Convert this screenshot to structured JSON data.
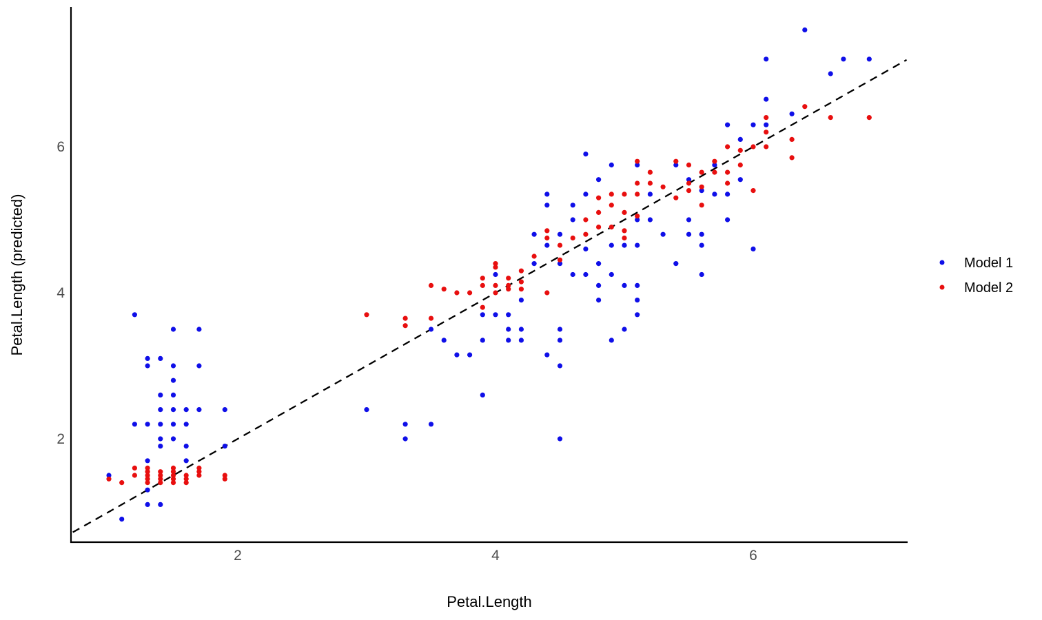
{
  "chart_data": {
    "type": "scatter",
    "title": "",
    "xlabel": "Petal.Length",
    "ylabel": "Petal.Length (predicted)",
    "xlim": [
      0.7,
      7.2
    ],
    "ylim": [
      0.55,
      7.95
    ],
    "xticks": [
      "2",
      "4",
      "6"
    ],
    "yticks": [
      "2",
      "4",
      "6"
    ],
    "grid": false,
    "legend_position": "right",
    "background": "#ffffff",
    "axis_color": "#000000",
    "tick_label_color": "#4d4d4d",
    "identity_line": {
      "equation": "y = x",
      "style": "dashed",
      "color": "#000000",
      "from": 0.72,
      "to": 7.19
    },
    "series": [
      {
        "name": "Model 1",
        "color": "#0f0fe8",
        "points": [
          [
            1.2,
            3.7
          ],
          [
            1.5,
            3.5
          ],
          [
            1.7,
            3.5
          ],
          [
            1.3,
            3.1
          ],
          [
            1.4,
            3.1
          ],
          [
            1.3,
            3.0
          ],
          [
            1.5,
            3.0
          ],
          [
            1.7,
            3.0
          ],
          [
            1.5,
            2.8
          ],
          [
            1.4,
            2.6
          ],
          [
            1.5,
            2.6
          ],
          [
            1.4,
            2.4
          ],
          [
            1.5,
            2.4
          ],
          [
            1.6,
            2.4
          ],
          [
            1.7,
            2.4
          ],
          [
            1.9,
            2.4
          ],
          [
            1.2,
            2.2
          ],
          [
            1.3,
            2.2
          ],
          [
            1.4,
            2.2
          ],
          [
            1.5,
            2.2
          ],
          [
            1.6,
            2.2
          ],
          [
            1.4,
            2.0
          ],
          [
            1.5,
            2.0
          ],
          [
            1.4,
            1.9
          ],
          [
            1.6,
            1.9
          ],
          [
            1.9,
            1.9
          ],
          [
            1.3,
            1.7
          ],
          [
            1.6,
            1.7
          ],
          [
            1.0,
            1.5
          ],
          [
            1.3,
            1.3
          ],
          [
            1.3,
            1.1
          ],
          [
            1.4,
            1.1
          ],
          [
            1.1,
            0.9
          ],
          [
            3.0,
            2.4
          ],
          [
            3.3,
            2.2
          ],
          [
            3.5,
            2.2
          ],
          [
            3.3,
            2.0
          ],
          [
            3.5,
            3.5
          ],
          [
            3.6,
            3.35
          ],
          [
            3.7,
            3.15
          ],
          [
            3.8,
            3.15
          ],
          [
            3.9,
            3.7
          ],
          [
            3.9,
            3.35
          ],
          [
            3.9,
            2.6
          ],
          [
            4.0,
            4.25
          ],
          [
            4.0,
            3.7
          ],
          [
            4.1,
            3.7
          ],
          [
            4.1,
            3.5
          ],
          [
            4.1,
            3.35
          ],
          [
            4.2,
            3.9
          ],
          [
            4.2,
            3.5
          ],
          [
            4.2,
            3.35
          ],
          [
            4.3,
            4.8
          ],
          [
            4.3,
            4.4
          ],
          [
            4.4,
            5.35
          ],
          [
            4.4,
            5.2
          ],
          [
            4.4,
            4.65
          ],
          [
            4.4,
            3.15
          ],
          [
            4.5,
            4.8
          ],
          [
            4.5,
            4.4
          ],
          [
            4.5,
            3.5
          ],
          [
            4.5,
            3.35
          ],
          [
            4.5,
            3.0
          ],
          [
            4.5,
            2.0
          ],
          [
            4.6,
            5.2
          ],
          [
            4.6,
            5.0
          ],
          [
            4.6,
            4.25
          ],
          [
            4.7,
            5.9
          ],
          [
            4.7,
            5.35
          ],
          [
            4.7,
            4.6
          ],
          [
            4.7,
            4.25
          ],
          [
            4.8,
            5.55
          ],
          [
            4.8,
            4.4
          ],
          [
            4.8,
            4.1
          ],
          [
            4.8,
            3.9
          ],
          [
            4.9,
            5.75
          ],
          [
            4.9,
            4.65
          ],
          [
            4.9,
            4.25
          ],
          [
            4.9,
            3.35
          ],
          [
            5.0,
            4.65
          ],
          [
            5.0,
            4.1
          ],
          [
            5.0,
            3.5
          ],
          [
            5.1,
            5.75
          ],
          [
            5.1,
            5.0
          ],
          [
            5.1,
            4.65
          ],
          [
            5.1,
            4.1
          ],
          [
            5.1,
            3.9
          ],
          [
            5.1,
            3.7
          ],
          [
            5.2,
            5.35
          ],
          [
            5.2,
            5.0
          ],
          [
            5.3,
            4.8
          ],
          [
            5.4,
            5.75
          ],
          [
            5.4,
            4.4
          ],
          [
            5.5,
            5.55
          ],
          [
            5.5,
            5.0
          ],
          [
            5.5,
            4.8
          ],
          [
            5.6,
            5.4
          ],
          [
            5.6,
            4.8
          ],
          [
            5.6,
            4.65
          ],
          [
            5.6,
            4.25
          ],
          [
            5.7,
            5.75
          ],
          [
            5.7,
            5.35
          ],
          [
            5.8,
            6.3
          ],
          [
            5.8,
            5.35
          ],
          [
            5.8,
            5.0
          ],
          [
            5.9,
            6.1
          ],
          [
            5.9,
            5.55
          ],
          [
            6.0,
            6.3
          ],
          [
            6.0,
            4.6
          ],
          [
            6.1,
            7.2
          ],
          [
            6.1,
            6.65
          ],
          [
            6.1,
            6.3
          ],
          [
            6.3,
            6.45
          ],
          [
            6.4,
            7.6
          ],
          [
            6.6,
            7.0
          ],
          [
            6.7,
            7.2
          ],
          [
            6.9,
            7.2
          ]
        ]
      },
      {
        "name": "Model 2",
        "color": "#e80f0f",
        "points": [
          [
            1.0,
            1.45
          ],
          [
            1.1,
            1.4
          ],
          [
            1.2,
            1.6
          ],
          [
            1.2,
            1.5
          ],
          [
            1.3,
            1.6
          ],
          [
            1.3,
            1.55
          ],
          [
            1.3,
            1.5
          ],
          [
            1.3,
            1.45
          ],
          [
            1.3,
            1.4
          ],
          [
            1.4,
            1.55
          ],
          [
            1.4,
            1.5
          ],
          [
            1.4,
            1.45
          ],
          [
            1.4,
            1.4
          ],
          [
            1.5,
            1.6
          ],
          [
            1.5,
            1.55
          ],
          [
            1.5,
            1.5
          ],
          [
            1.5,
            1.45
          ],
          [
            1.5,
            1.4
          ],
          [
            1.6,
            1.5
          ],
          [
            1.6,
            1.45
          ],
          [
            1.6,
            1.4
          ],
          [
            1.7,
            1.6
          ],
          [
            1.7,
            1.55
          ],
          [
            1.7,
            1.5
          ],
          [
            1.9,
            1.5
          ],
          [
            1.9,
            1.45
          ],
          [
            3.0,
            3.7
          ],
          [
            3.3,
            3.65
          ],
          [
            3.3,
            3.55
          ],
          [
            3.5,
            4.1
          ],
          [
            3.5,
            3.65
          ],
          [
            3.6,
            4.05
          ],
          [
            3.7,
            4.0
          ],
          [
            3.8,
            4.0
          ],
          [
            3.9,
            4.2
          ],
          [
            3.9,
            4.1
          ],
          [
            3.9,
            3.8
          ],
          [
            4.0,
            4.4
          ],
          [
            4.0,
            4.35
          ],
          [
            4.0,
            4.1
          ],
          [
            4.0,
            4.0
          ],
          [
            4.1,
            4.2
          ],
          [
            4.1,
            4.1
          ],
          [
            4.1,
            4.05
          ],
          [
            4.2,
            4.3
          ],
          [
            4.2,
            4.15
          ],
          [
            4.2,
            4.05
          ],
          [
            4.3,
            4.5
          ],
          [
            4.4,
            4.85
          ],
          [
            4.4,
            4.75
          ],
          [
            4.4,
            4.0
          ],
          [
            4.5,
            4.65
          ],
          [
            4.5,
            4.45
          ],
          [
            4.6,
            4.75
          ],
          [
            4.7,
            5.0
          ],
          [
            4.7,
            4.8
          ],
          [
            4.8,
            5.3
          ],
          [
            4.8,
            5.1
          ],
          [
            4.8,
            4.9
          ],
          [
            4.9,
            5.35
          ],
          [
            4.9,
            5.2
          ],
          [
            4.9,
            4.9
          ],
          [
            5.0,
            5.35
          ],
          [
            5.0,
            5.1
          ],
          [
            5.0,
            4.85
          ],
          [
            5.0,
            4.75
          ],
          [
            5.1,
            5.8
          ],
          [
            5.1,
            5.5
          ],
          [
            5.1,
            5.35
          ],
          [
            5.1,
            5.05
          ],
          [
            5.2,
            5.65
          ],
          [
            5.2,
            5.5
          ],
          [
            5.3,
            5.45
          ],
          [
            5.4,
            5.8
          ],
          [
            5.4,
            5.3
          ],
          [
            5.5,
            5.75
          ],
          [
            5.5,
            5.5
          ],
          [
            5.5,
            5.4
          ],
          [
            5.6,
            5.65
          ],
          [
            5.6,
            5.45
          ],
          [
            5.6,
            5.2
          ],
          [
            5.7,
            5.8
          ],
          [
            5.7,
            5.65
          ],
          [
            5.8,
            6.0
          ],
          [
            5.8,
            5.65
          ],
          [
            5.8,
            5.5
          ],
          [
            5.9,
            5.95
          ],
          [
            5.9,
            5.75
          ],
          [
            6.0,
            6.0
          ],
          [
            6.0,
            5.4
          ],
          [
            6.1,
            6.4
          ],
          [
            6.1,
            6.2
          ],
          [
            6.1,
            6.0
          ],
          [
            6.3,
            6.1
          ],
          [
            6.3,
            5.85
          ],
          [
            6.4,
            6.55
          ],
          [
            6.6,
            6.4
          ],
          [
            6.9,
            6.4
          ]
        ]
      }
    ]
  }
}
